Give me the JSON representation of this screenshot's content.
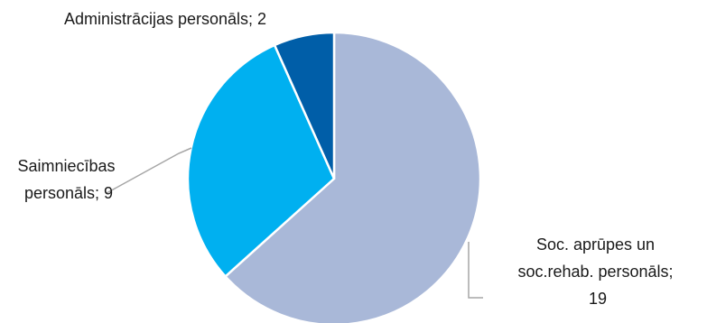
{
  "chart_data": {
    "type": "pie",
    "title": "",
    "slices": [
      {
        "label_lines": [
          "Soc. aprūpes un",
          "soc.rehab. personāls;",
          "19"
        ],
        "value": 19,
        "color": "#a9b8d8"
      },
      {
        "label_lines": [
          "Saimniecības",
          "personāls; 9"
        ],
        "value": 9,
        "color": "#00b0f0"
      },
      {
        "label_lines": [
          "Administrācijas personāls; 2"
        ],
        "value": 2,
        "color": "#005ea8"
      }
    ]
  }
}
